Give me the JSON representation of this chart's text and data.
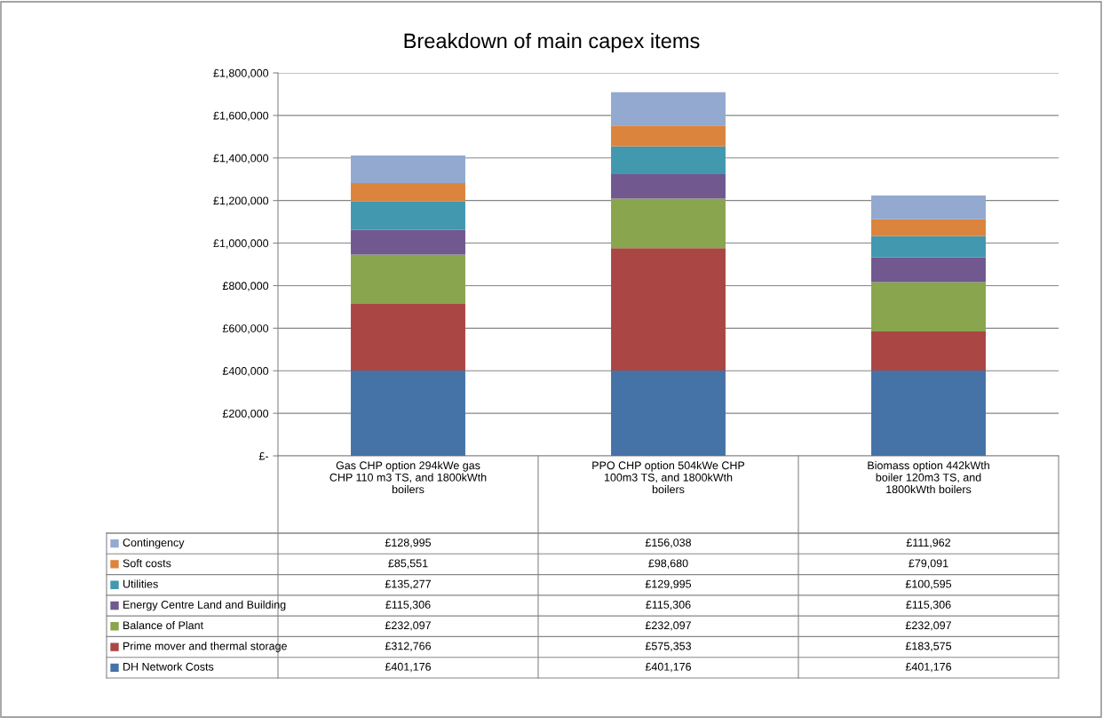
{
  "chart_data": {
    "type": "bar",
    "title": "Breakdown of main capex items",
    "categories": [
      "Gas CHP option 294kWe gas\nCHP 110 m3 TS, and 1800kWth\nboilers",
      "PPO CHP option 504kWe CHP\n100m3 TS, and 1800kWth\nboilers",
      "Biomass option 442kWth\nboiler 120m3 TS, and\n1800kWth boilers"
    ],
    "stacked": true,
    "series": [
      {
        "name": "DH Network Costs",
        "color": "#4572a7",
        "values": [
          401176,
          401176,
          401176
        ],
        "value_labels": [
          "£401,176",
          "£401,176",
          "£401,176"
        ]
      },
      {
        "name": "Prime mover and thermal storage",
        "color": "#aa4643",
        "values": [
          312766,
          575353,
          183575
        ],
        "value_labels": [
          "£312,766",
          "£575,353",
          "£183,575"
        ]
      },
      {
        "name": "Balance of Plant",
        "color": "#89a54e",
        "values": [
          232097,
          232097,
          232097
        ],
        "value_labels": [
          "£232,097",
          "£232,097",
          "£232,097"
        ]
      },
      {
        "name": "Energy Centre Land and Building",
        "color": "#71588f",
        "values": [
          115306,
          115306,
          115306
        ],
        "value_labels": [
          "£115,306",
          "£115,306",
          "£115,306"
        ]
      },
      {
        "name": "Utilities",
        "color": "#4198af",
        "values": [
          135277,
          129995,
          100595
        ],
        "value_labels": [
          "£135,277",
          "£129,995",
          "£100,595"
        ]
      },
      {
        "name": "Soft costs",
        "color": "#db843d",
        "values": [
          85551,
          98680,
          79091
        ],
        "value_labels": [
          "£85,551",
          "£98,680",
          "£79,091"
        ]
      },
      {
        "name": "Contingency",
        "color": "#93a9cf",
        "values": [
          128995,
          156038,
          111962
        ],
        "value_labels": [
          "£128,995",
          "£156,038",
          "£111,962"
        ]
      }
    ],
    "ylim": [
      0,
      1800000
    ],
    "yticks": [
      {
        "value": 0,
        "label": "£-"
      },
      {
        "value": 200000,
        "label": "£200,000"
      },
      {
        "value": 400000,
        "label": "£400,000"
      },
      {
        "value": 600000,
        "label": "£600,000"
      },
      {
        "value": 800000,
        "label": "£800,000"
      },
      {
        "value": 1000000,
        "label": "£1,000,000"
      },
      {
        "value": 1200000,
        "label": "£1,200,000"
      },
      {
        "value": 1400000,
        "label": "£1,400,000"
      },
      {
        "value": 1600000,
        "label": "£1,600,000"
      },
      {
        "value": 1800000,
        "label": "£1,800,000"
      }
    ],
    "grid": "y",
    "legend": "bottom"
  }
}
